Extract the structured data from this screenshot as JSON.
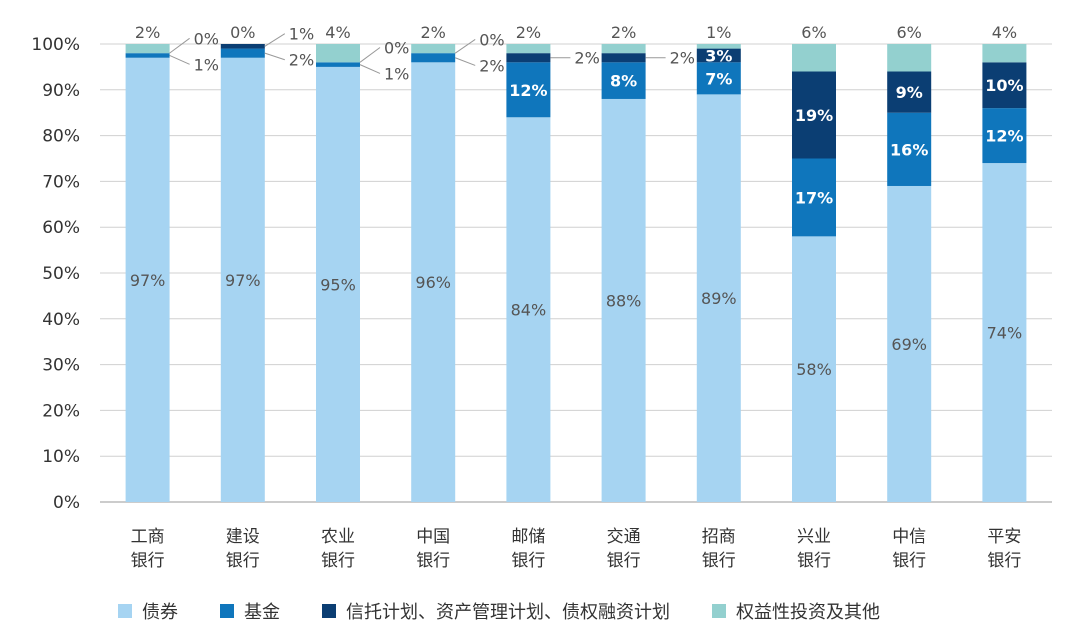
{
  "chart_data": {
    "type": "bar",
    "stacked": true,
    "categories": [
      [
        "工商",
        "银行"
      ],
      [
        "建设",
        "银行"
      ],
      [
        "农业",
        "银行"
      ],
      [
        "中国",
        "银行"
      ],
      [
        "邮储",
        "银行"
      ],
      [
        "交通",
        "银行"
      ],
      [
        "招商",
        "银行"
      ],
      [
        "兴业",
        "银行"
      ],
      [
        "中信",
        "银行"
      ],
      [
        "平安",
        "银行"
      ]
    ],
    "series": [
      {
        "name": "债券",
        "color": "#a6d4f2",
        "values": [
          97,
          97,
          95,
          96,
          84,
          88,
          89,
          58,
          69,
          74
        ]
      },
      {
        "name": "基金",
        "color": "#0f76bc",
        "values": [
          1,
          2,
          1,
          2,
          12,
          8,
          7,
          17,
          16,
          12
        ]
      },
      {
        "name": "信托计划、资产管理计划、债权融资计划",
        "color": "#0b3e73",
        "values": [
          0,
          1,
          0,
          0,
          2,
          2,
          3,
          19,
          9,
          10
        ]
      },
      {
        "name": "权益性投资及其他",
        "color": "#93d0cf",
        "values": [
          2,
          0,
          4,
          2,
          2,
          2,
          1,
          6,
          6,
          4
        ]
      }
    ],
    "yticks": [
      "0%",
      "10%",
      "20%",
      "30%",
      "40%",
      "50%",
      "60%",
      "70%",
      "80%",
      "90%",
      "100%"
    ],
    "ylim": [
      0,
      100
    ],
    "grid": true,
    "legend_position": "bottom"
  }
}
